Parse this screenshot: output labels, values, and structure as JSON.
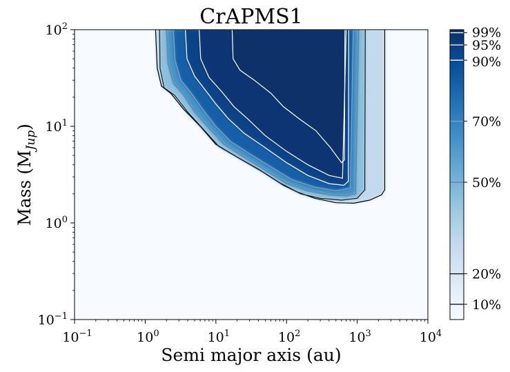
{
  "chart_data": {
    "type": "heatmap",
    "title": "CrAPMS1",
    "xlabel": "Semi major axis (au)",
    "ylabel_main": "Mass (M",
    "ylabel_sub": "Jup",
    "ylabel_end": ")",
    "xscale": "log",
    "yscale": "log",
    "xlim": [
      0.1,
      10000
    ],
    "ylim": [
      0.1,
      100
    ],
    "x_ticks": [
      {
        "base": "10",
        "exp": "−1",
        "value": 0.1
      },
      {
        "base": "10",
        "exp": "0",
        "value": 1
      },
      {
        "base": "10",
        "exp": "1",
        "value": 10
      },
      {
        "base": "10",
        "exp": "2",
        "value": 100
      },
      {
        "base": "10",
        "exp": "3",
        "value": 1000
      },
      {
        "base": "10",
        "exp": "4",
        "value": 10000
      }
    ],
    "y_ticks": [
      {
        "base": "10",
        "exp": "−1",
        "value": 0.1
      },
      {
        "base": "10",
        "exp": "0",
        "value": 1
      },
      {
        "base": "10",
        "exp": "1",
        "value": 10
      },
      {
        "base": "10",
        "exp": "2",
        "value": 100
      }
    ],
    "colormap": "Blues",
    "colorbar_range": [
      0.05,
      1.0
    ],
    "contour_levels": [
      {
        "value": 0.1,
        "label": "10%",
        "color": "#000000"
      },
      {
        "value": 0.2,
        "label": "20%",
        "color": "#1a1a1a"
      },
      {
        "value": 0.5,
        "label": "50%",
        "color": "#6a7f93"
      },
      {
        "value": 0.7,
        "label": "70%",
        "color": "#8aa2b9"
      },
      {
        "value": 0.9,
        "label": "90%",
        "color": "#ffffff"
      },
      {
        "value": 0.95,
        "label": "95%",
        "color": "#ffffff"
      },
      {
        "value": 0.99,
        "label": "99%",
        "color": "#ffffff"
      }
    ],
    "contours": [
      {
        "level": 0.1,
        "points": [
          [
            1.4,
            100
          ],
          [
            1.48,
            40
          ],
          [
            1.7,
            26
          ],
          [
            2.3,
            22
          ],
          [
            3.5,
            15
          ],
          [
            6,
            10
          ],
          [
            10,
            6.5
          ],
          [
            20,
            4.8
          ],
          [
            40,
            3.6
          ],
          [
            80,
            2.6
          ],
          [
            140,
            2.1
          ],
          [
            250,
            1.8
          ],
          [
            500,
            1.62
          ],
          [
            900,
            1.6
          ],
          [
            1500,
            1.72
          ],
          [
            2200,
            1.95
          ],
          [
            2450,
            2.2
          ],
          [
            2450,
            100
          ]
        ]
      },
      {
        "level": 0.2,
        "points": [
          [
            1.6,
            100
          ],
          [
            1.62,
            40
          ],
          [
            1.85,
            25
          ],
          [
            2.6,
            21
          ],
          [
            4,
            14
          ],
          [
            6.5,
            9.5
          ],
          [
            11,
            6.2
          ],
          [
            22,
            4.6
          ],
          [
            45,
            3.4
          ],
          [
            90,
            2.45
          ],
          [
            160,
            2.0
          ],
          [
            300,
            1.8
          ],
          [
            600,
            1.72
          ],
          [
            1000,
            1.8
          ],
          [
            1280,
            2.2
          ],
          [
            1300,
            100
          ]
        ]
      },
      {
        "level": 0.5,
        "points": [
          [
            2.0,
            100
          ],
          [
            2.1,
            45
          ],
          [
            2.5,
            28
          ],
          [
            3.5,
            21
          ],
          [
            5,
            14
          ],
          [
            8,
            9.5
          ],
          [
            13,
            6.5
          ],
          [
            25,
            4.8
          ],
          [
            50,
            3.5
          ],
          [
            100,
            2.55
          ],
          [
            200,
            2.15
          ],
          [
            400,
            1.95
          ],
          [
            700,
            1.9
          ],
          [
            950,
            2.0
          ],
          [
            1050,
            100
          ]
        ]
      },
      {
        "level": 0.7,
        "points": [
          [
            2.5,
            100
          ],
          [
            2.65,
            48
          ],
          [
            3.2,
            30
          ],
          [
            4.5,
            22
          ],
          [
            6.5,
            15
          ],
          [
            10,
            10
          ],
          [
            16,
            7
          ],
          [
            30,
            5.2
          ],
          [
            60,
            3.8
          ],
          [
            120,
            2.8
          ],
          [
            250,
            2.35
          ],
          [
            500,
            2.15
          ],
          [
            800,
            2.3
          ],
          [
            880,
            100
          ]
        ]
      },
      {
        "level": 0.9,
        "points": [
          [
            3.7,
            100
          ],
          [
            3.9,
            50
          ],
          [
            5,
            33
          ],
          [
            7,
            24
          ],
          [
            10,
            17
          ],
          [
            15,
            12
          ],
          [
            25,
            8.5
          ],
          [
            50,
            6
          ],
          [
            100,
            4.2
          ],
          [
            200,
            3.1
          ],
          [
            400,
            2.55
          ],
          [
            650,
            2.45
          ],
          [
            750,
            2.7
          ],
          [
            760,
            100
          ]
        ]
      },
      {
        "level": 0.95,
        "points": [
          [
            5.8,
            100
          ],
          [
            6.1,
            50
          ],
          [
            8,
            32
          ],
          [
            12,
            23
          ],
          [
            18,
            16
          ],
          [
            28,
            12
          ],
          [
            50,
            8
          ],
          [
            100,
            5.5
          ],
          [
            200,
            4
          ],
          [
            400,
            3.1
          ],
          [
            620,
            2.9
          ],
          [
            700,
            100
          ]
        ]
      },
      {
        "level": 0.99,
        "points": [
          [
            17,
            100
          ],
          [
            17.5,
            50
          ],
          [
            22,
            38
          ],
          [
            35,
            30
          ],
          [
            60,
            22
          ],
          [
            90,
            16
          ],
          [
            150,
            12
          ],
          [
            260,
            9
          ],
          [
            420,
            6
          ],
          [
            600,
            4.2
          ],
          [
            660,
            4.5
          ],
          [
            670,
            100
          ]
        ]
      }
    ]
  }
}
